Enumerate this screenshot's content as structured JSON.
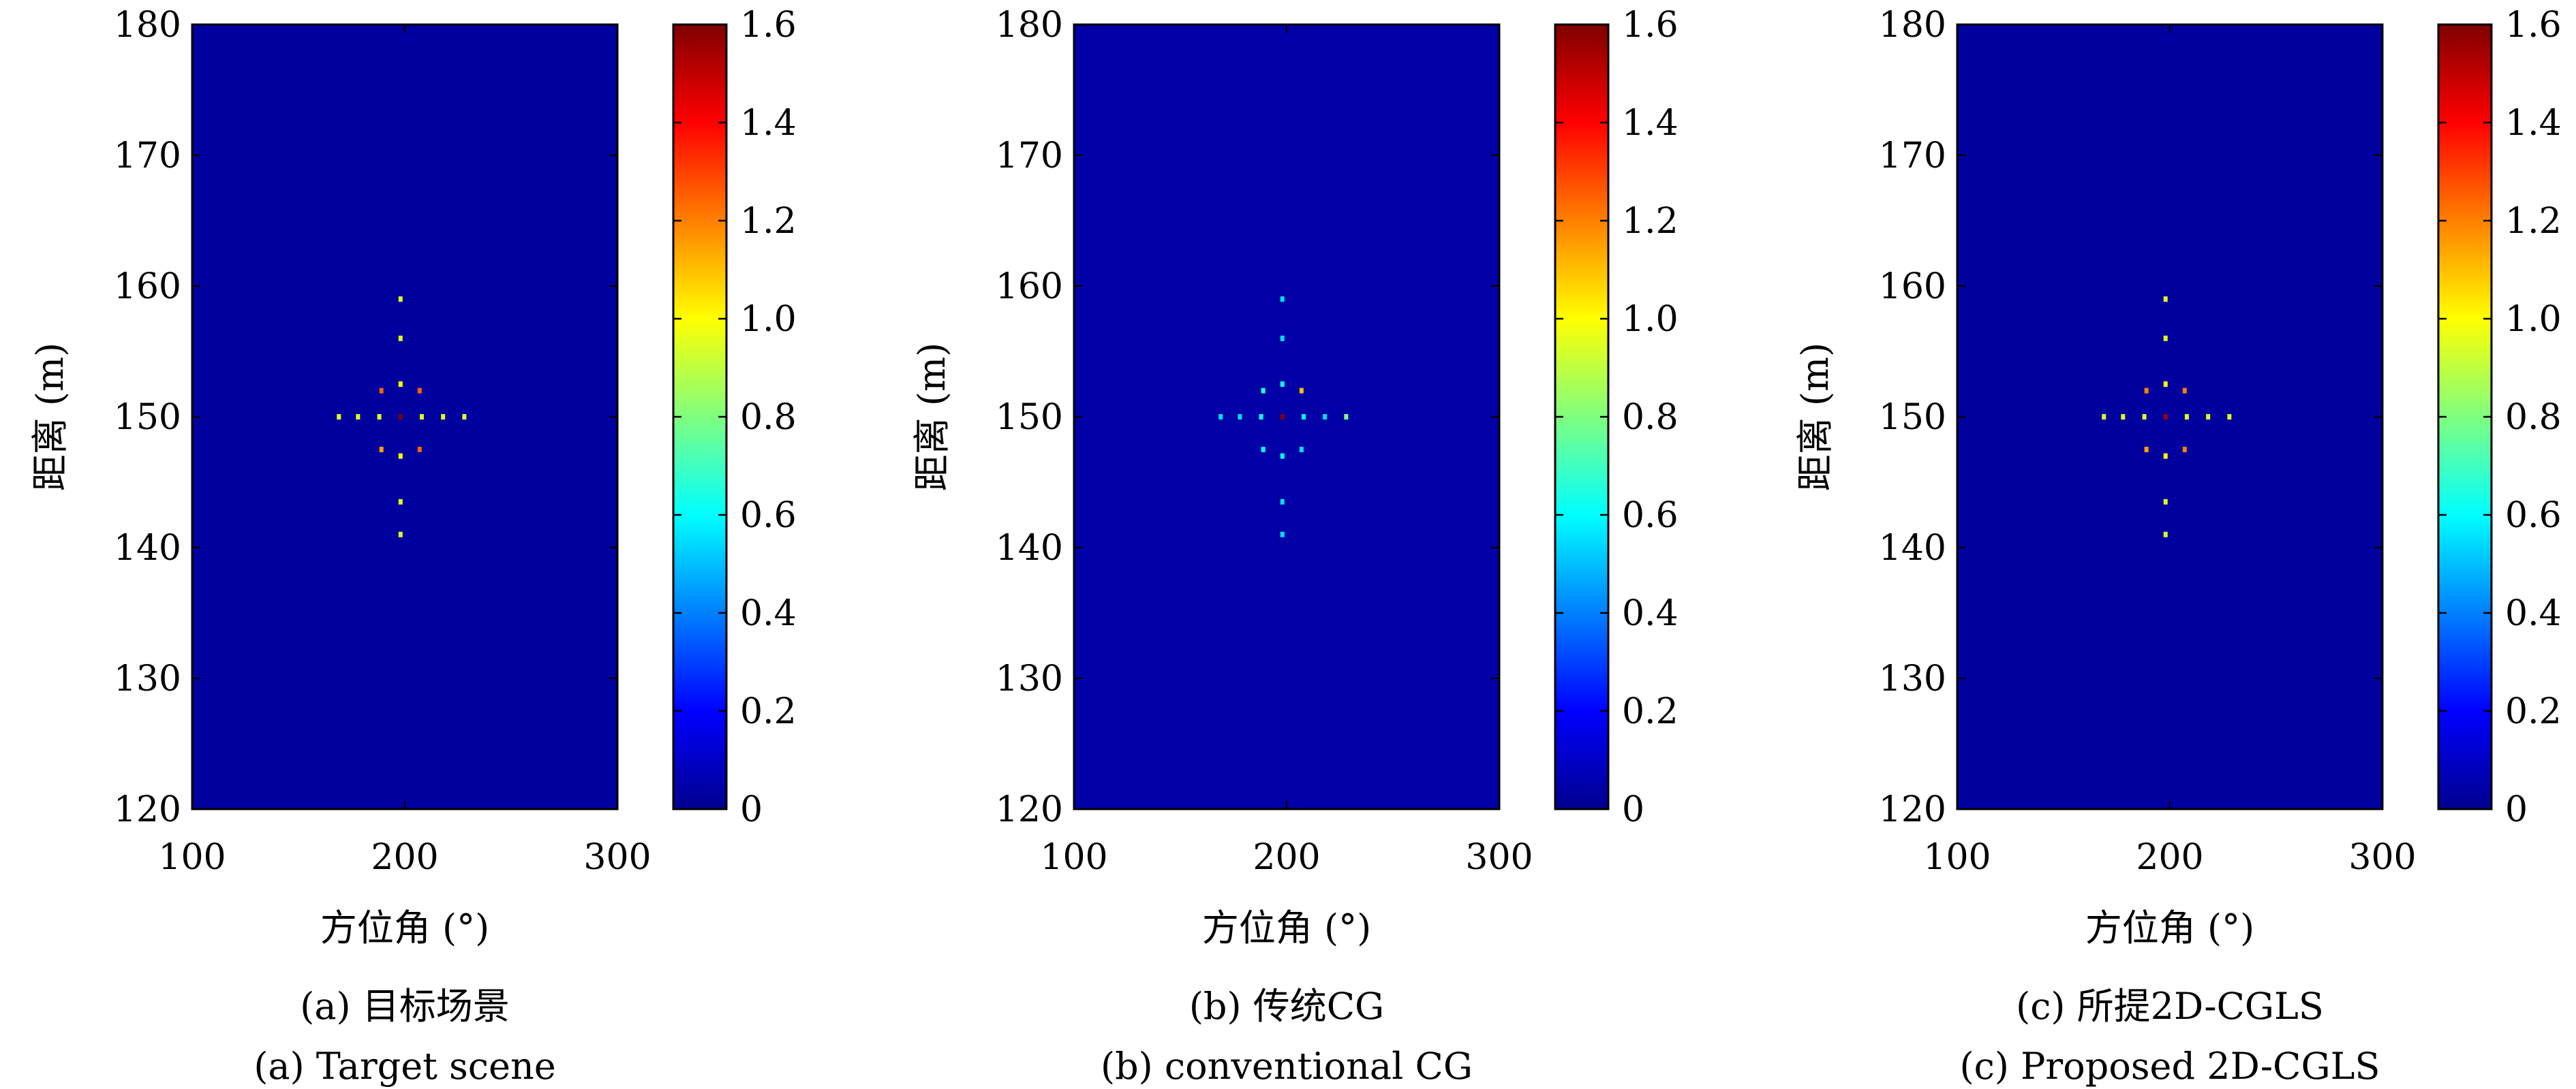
{
  "chart_data": [
    {
      "type": "heatmap",
      "caption_cn": "(a) 目标场景",
      "caption_en": "(a) Target scene",
      "xlabel": "方位角 (°)",
      "ylabel": "距离 (m)",
      "xlim": [
        100,
        300
      ],
      "ylim": [
        120,
        180
      ],
      "xticks": [
        "100",
        "200",
        "300"
      ],
      "yticks": [
        "120",
        "130",
        "140",
        "150",
        "160",
        "170",
        "180"
      ],
      "background_value": 0.05,
      "colorbar": {
        "colormap": "jet",
        "range": [
          0,
          1.6
        ],
        "ticks": [
          "0",
          "0.2",
          "0.4",
          "0.6",
          "0.8",
          "1.0",
          "1.2",
          "1.4",
          "1.6"
        ]
      },
      "points": [
        {
          "x": 198,
          "y": 159,
          "v": 0.95
        },
        {
          "x": 198,
          "y": 156,
          "v": 0.95
        },
        {
          "x": 198,
          "y": 152.5,
          "v": 1.0
        },
        {
          "x": 189,
          "y": 152,
          "v": 1.25
        },
        {
          "x": 207,
          "y": 152,
          "v": 1.25
        },
        {
          "x": 169,
          "y": 150,
          "v": 0.95
        },
        {
          "x": 178,
          "y": 150,
          "v": 0.95
        },
        {
          "x": 188,
          "y": 150,
          "v": 0.95
        },
        {
          "x": 198,
          "y": 150,
          "v": 1.6
        },
        {
          "x": 208,
          "y": 150,
          "v": 0.95
        },
        {
          "x": 218,
          "y": 150,
          "v": 0.95
        },
        {
          "x": 228,
          "y": 150,
          "v": 0.95
        },
        {
          "x": 189,
          "y": 147.5,
          "v": 1.15
        },
        {
          "x": 207,
          "y": 147.5,
          "v": 1.25
        },
        {
          "x": 198,
          "y": 147,
          "v": 1.0
        },
        {
          "x": 198,
          "y": 143.5,
          "v": 0.95
        },
        {
          "x": 198,
          "y": 141,
          "v": 0.95
        }
      ]
    },
    {
      "type": "heatmap",
      "caption_cn": "(b) 传统CG",
      "caption_en": "(b) conventional CG",
      "xlabel": "方位角 (°)",
      "ylabel": "距离 (m)",
      "xlim": [
        100,
        300
      ],
      "ylim": [
        120,
        180
      ],
      "xticks": [
        "100",
        "200",
        "300"
      ],
      "yticks": [
        "120",
        "130",
        "140",
        "150",
        "160",
        "170",
        "180"
      ],
      "background_value": 0.06,
      "colorbar": {
        "colormap": "jet",
        "range": [
          0,
          1.6
        ],
        "ticks": [
          "0",
          "0.2",
          "0.4",
          "0.6",
          "0.8",
          "1.0",
          "1.2",
          "1.4",
          "1.6"
        ]
      },
      "points": [
        {
          "x": 198,
          "y": 159,
          "v": 0.55
        },
        {
          "x": 198,
          "y": 156,
          "v": 0.55
        },
        {
          "x": 198,
          "y": 152.5,
          "v": 0.6
        },
        {
          "x": 189,
          "y": 152,
          "v": 0.65
        },
        {
          "x": 207,
          "y": 152,
          "v": 1.1
        },
        {
          "x": 169,
          "y": 150,
          "v": 0.55
        },
        {
          "x": 178,
          "y": 150,
          "v": 0.55
        },
        {
          "x": 188,
          "y": 150,
          "v": 0.6
        },
        {
          "x": 198,
          "y": 150,
          "v": 1.6
        },
        {
          "x": 208,
          "y": 150,
          "v": 0.6
        },
        {
          "x": 218,
          "y": 150,
          "v": 0.55
        },
        {
          "x": 228,
          "y": 150,
          "v": 0.8
        },
        {
          "x": 189,
          "y": 147.5,
          "v": 0.6
        },
        {
          "x": 207,
          "y": 147.5,
          "v": 0.55
        },
        {
          "x": 198,
          "y": 147,
          "v": 0.6
        },
        {
          "x": 198,
          "y": 143.5,
          "v": 0.55
        },
        {
          "x": 198,
          "y": 141,
          "v": 0.55
        }
      ]
    },
    {
      "type": "heatmap",
      "caption_cn": "(c) 所提2D-CGLS",
      "caption_en": "(c) Proposed 2D-CGLS",
      "xlabel": "方位角 (°)",
      "ylabel": "距离 (m)",
      "xlim": [
        100,
        300
      ],
      "ylim": [
        120,
        180
      ],
      "xticks": [
        "100",
        "200",
        "300"
      ],
      "yticks": [
        "120",
        "130",
        "140",
        "150",
        "160",
        "170",
        "180"
      ],
      "background_value": 0.05,
      "colorbar": {
        "colormap": "jet",
        "range": [
          0,
          1.6
        ],
        "ticks": [
          "0",
          "0.2",
          "0.4",
          "0.6",
          "0.8",
          "1.0",
          "1.2",
          "1.4",
          "1.6"
        ]
      },
      "points": [
        {
          "x": 198,
          "y": 159,
          "v": 0.95
        },
        {
          "x": 198,
          "y": 156,
          "v": 0.95
        },
        {
          "x": 198,
          "y": 152.5,
          "v": 1.0
        },
        {
          "x": 189,
          "y": 152,
          "v": 1.2
        },
        {
          "x": 207,
          "y": 152,
          "v": 1.2
        },
        {
          "x": 169,
          "y": 150,
          "v": 0.95
        },
        {
          "x": 178,
          "y": 150,
          "v": 0.95
        },
        {
          "x": 188,
          "y": 150,
          "v": 0.95
        },
        {
          "x": 198,
          "y": 150,
          "v": 1.55
        },
        {
          "x": 208,
          "y": 150,
          "v": 0.95
        },
        {
          "x": 218,
          "y": 150,
          "v": 0.95
        },
        {
          "x": 228,
          "y": 150,
          "v": 0.95
        },
        {
          "x": 189,
          "y": 147.5,
          "v": 1.15
        },
        {
          "x": 207,
          "y": 147.5,
          "v": 1.2
        },
        {
          "x": 198,
          "y": 147,
          "v": 1.0
        },
        {
          "x": 198,
          "y": 143.5,
          "v": 0.95
        },
        {
          "x": 198,
          "y": 141,
          "v": 0.95
        }
      ]
    }
  ]
}
